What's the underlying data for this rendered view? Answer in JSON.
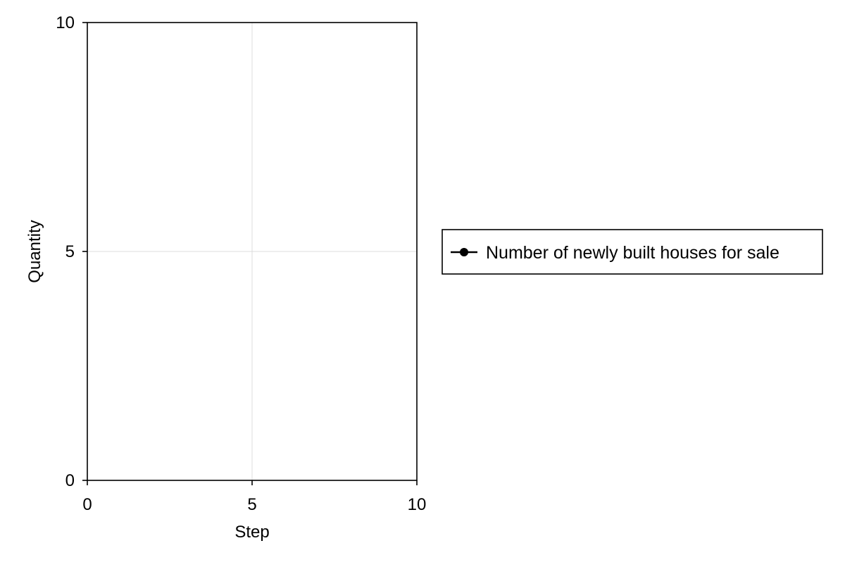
{
  "chart_data": {
    "type": "line",
    "title": "",
    "xlabel": "Step",
    "ylabel": "Quantity",
    "xlim": [
      0,
      10
    ],
    "ylim": [
      0,
      10
    ],
    "xticks": [
      0,
      5,
      10
    ],
    "yticks": [
      0,
      5,
      10
    ],
    "grid": true,
    "legend_position": "right",
    "series": [
      {
        "name": "Number of newly built houses for sale",
        "color": "#000000",
        "marker": "circle",
        "x": [],
        "y": []
      }
    ]
  }
}
